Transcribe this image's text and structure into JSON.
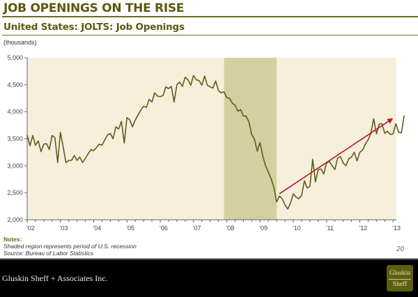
{
  "header": {
    "title": "JOB OPENINGS ON THE RISE",
    "subtitle": "United States: JOLTS: Job Openings",
    "units": "(thousands)"
  },
  "notes": {
    "heading": "Notes:",
    "lines": [
      "Shaded region represents period of U.S. recession",
      "Source: Bureau of Labor Statistics"
    ]
  },
  "page_number": "20",
  "footer": {
    "firm_name": "Gluskin Sheff + Associates Inc.",
    "logo_line1": "Gluskin",
    "logo_line2": "Sheff"
  },
  "colors": {
    "plot_bg": "#f5efdc",
    "recession": "#d4cf9f",
    "line": "#5c5c1a",
    "trend_arrow": "#c0141e",
    "accent": "#5a5a10"
  },
  "chart_data": {
    "type": "line",
    "title": "United States: JOLTS: Job Openings",
    "ylabel": "(thousands)",
    "xlabel": "",
    "ylim": [
      2000,
      5000
    ],
    "yticks": [
      2000,
      2500,
      3000,
      3500,
      4000,
      4500,
      5000
    ],
    "ytick_labels": [
      "2,000",
      "2,500",
      "3,000",
      "3,500",
      "4,000",
      "4,500",
      "5,000"
    ],
    "xlim": [
      2002.0,
      2013.2
    ],
    "xticks": [
      2002,
      2003,
      2004,
      2005,
      2006,
      2007,
      2008,
      2009,
      2010,
      2011,
      2012,
      2013
    ],
    "xtick_labels": [
      "'02",
      "'03",
      "'04",
      "'05",
      "'06",
      "'07",
      "'08",
      "'09",
      "'10",
      "'11",
      "'12",
      "'13"
    ],
    "grid": false,
    "recession": {
      "start": 2007.92,
      "end": 2009.5,
      "label": "U.S. recession"
    },
    "trend_arrow": {
      "from": [
        2009.58,
        2480
      ],
      "to": [
        2013.0,
        3880
      ]
    },
    "series": [
      {
        "name": "Job Openings",
        "start": 2002.0,
        "step_years": 0.08333,
        "values": [
          3570,
          3370,
          3560,
          3380,
          3460,
          3260,
          3400,
          3410,
          3300,
          3560,
          3520,
          3060,
          3620,
          3350,
          3060,
          3100,
          3100,
          3190,
          3100,
          3160,
          3060,
          3140,
          3220,
          3300,
          3280,
          3340,
          3400,
          3380,
          3480,
          3570,
          3600,
          3500,
          3720,
          3680,
          3820,
          3420,
          3890,
          3850,
          3720,
          3850,
          3940,
          4030,
          4100,
          4080,
          4230,
          4180,
          4350,
          4290,
          4280,
          4300,
          4460,
          4430,
          4470,
          4180,
          4500,
          4550,
          4470,
          4640,
          4590,
          4490,
          4670,
          4590,
          4580,
          4490,
          4660,
          4490,
          4460,
          4440,
          4570,
          4390,
          4350,
          4370,
          4260,
          4250,
          4160,
          4120,
          4010,
          4040,
          3920,
          3920,
          3810,
          3580,
          3490,
          3270,
          3430,
          3180,
          3000,
          2880,
          2760,
          2600,
          2330,
          2440,
          2390,
          2280,
          2200,
          2310,
          2480,
          2420,
          2390,
          2450,
          2720,
          2590,
          2620,
          3120,
          2700,
          2930,
          2940,
          2850,
          3050,
          3080,
          3000,
          2930,
          3140,
          3170,
          3050,
          3000,
          3130,
          3160,
          3250,
          3090,
          3250,
          3290,
          3400,
          3480,
          3600,
          3870,
          3590,
          3770,
          3780,
          3600,
          3640,
          3580,
          3590,
          3780,
          3620,
          3610,
          3930
        ]
      }
    ]
  }
}
